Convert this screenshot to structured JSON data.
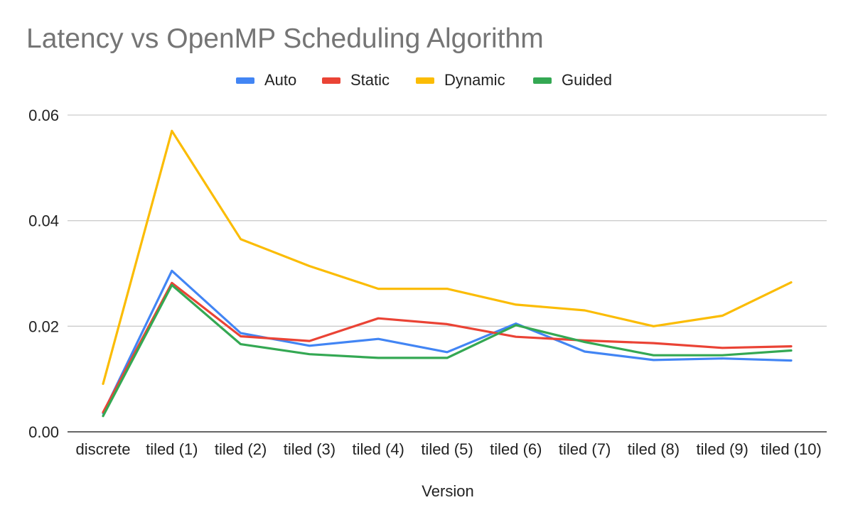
{
  "chart_data": {
    "type": "line",
    "title": "Latency vs OpenMP Scheduling Algorithm",
    "xlabel": "Version",
    "ylabel": "",
    "categories": [
      "discrete",
      "tiled (1)",
      "tiled (2)",
      "tiled (3)",
      "tiled (4)",
      "tiled (5)",
      "tiled (6)",
      "tiled (7)",
      "tiled (8)",
      "tiled (9)",
      "tiled (10)"
    ],
    "ylim": [
      0,
      0.06
    ],
    "yticks": [
      "0.00",
      "0.02",
      "0.04",
      "0.06"
    ],
    "yticks_values": [
      0,
      0.02,
      0.04,
      0.06
    ],
    "grid": true,
    "legend_position": "top-center",
    "series": [
      {
        "name": "Auto",
        "color": "#4285f4",
        "values": [
          0.0035,
          0.0305,
          0.0187,
          0.0163,
          0.0176,
          0.0151,
          0.0205,
          0.0152,
          0.0136,
          0.0139,
          0.0135
        ]
      },
      {
        "name": "Static",
        "color": "#ea4335",
        "values": [
          0.0037,
          0.0282,
          0.0181,
          0.0172,
          0.0215,
          0.0204,
          0.018,
          0.0173,
          0.0168,
          0.0159,
          0.0162
        ]
      },
      {
        "name": "Dynamic",
        "color": "#fbbc04",
        "values": [
          0.0091,
          0.057,
          0.0365,
          0.0314,
          0.0271,
          0.0271,
          0.0241,
          0.023,
          0.02,
          0.022,
          0.0283
        ]
      },
      {
        "name": "Guided",
        "color": "#34a853",
        "values": [
          0.003,
          0.0278,
          0.0166,
          0.0147,
          0.014,
          0.014,
          0.0202,
          0.017,
          0.0145,
          0.0145,
          0.0154
        ]
      }
    ]
  }
}
